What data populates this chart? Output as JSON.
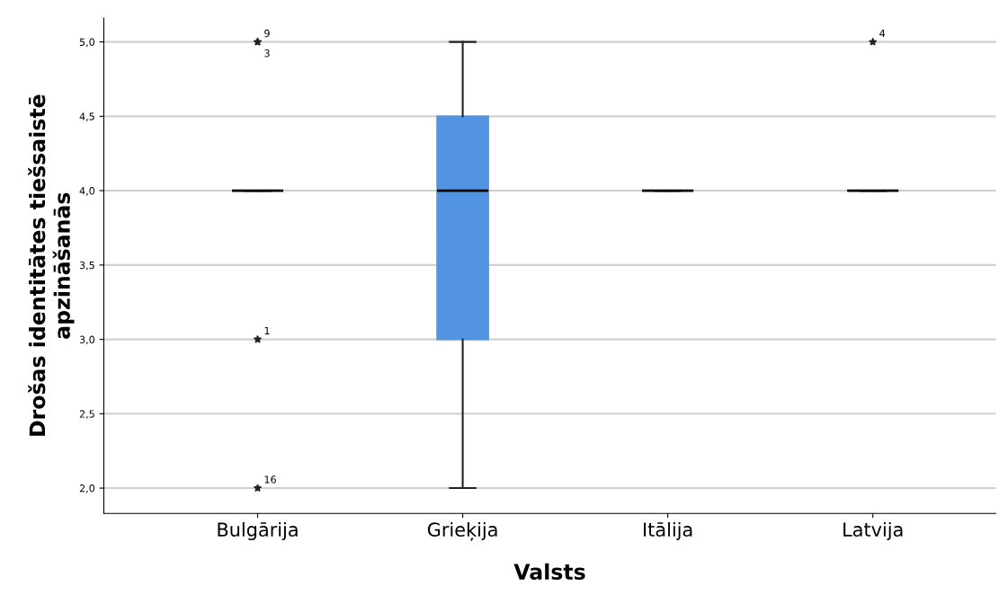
{
  "chart_data": {
    "type": "box",
    "xlabel": "Valsts",
    "ylabel": "Drošas identitātes tiešsaistē\napzināšanās",
    "categories": [
      "Bulgārija",
      "Grieķija",
      "Itālija",
      "Latvija"
    ],
    "boxes": [
      {
        "low": 4,
        "q1": 4,
        "median": 4,
        "q3": 4,
        "high": 4,
        "outliers": [
          5,
          5,
          3,
          2
        ]
      },
      {
        "low": 2,
        "q1": 3,
        "median": 4,
        "q3": 4.5,
        "high": 5
      },
      {
        "low": 4,
        "q1": 4,
        "median": 4,
        "q3": 4,
        "high": 4
      },
      {
        "low": 4,
        "q1": 4,
        "median": 4,
        "q3": 4,
        "high": 4,
        "outliers": [
          5
        ]
      }
    ],
    "color": "#5294e2",
    "marker": "star",
    "grid": "y",
    "ylim": [
      1.83,
      5.16
    ],
    "yticks": [
      {
        "value": 2,
        "label": "2,0"
      },
      {
        "value": 2.5,
        "label": "2,5"
      },
      {
        "value": 3,
        "label": "3,0"
      },
      {
        "value": 3.5,
        "label": "3,5"
      },
      {
        "value": 4,
        "label": "4,0"
      },
      {
        "value": 4.5,
        "label": "4,5"
      },
      {
        "value": 5,
        "label": "5,0"
      }
    ],
    "annotations": [
      "9",
      "3",
      "1",
      "16",
      "4"
    ]
  }
}
